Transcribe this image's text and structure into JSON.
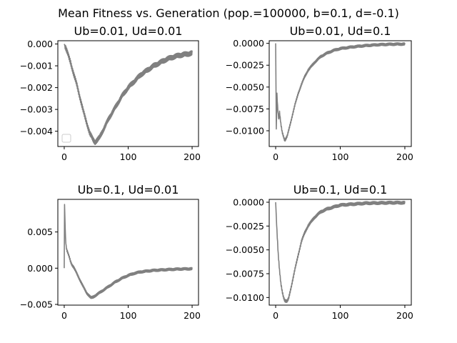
{
  "figure_title": "Mean Fitness vs. Generation (pop.=100000, b=0.1, d=-0.1)",
  "chart_data": [
    {
      "type": "line",
      "title": "Ub=0.01, Ud=0.01",
      "xlim": [
        -10,
        210
      ],
      "ylim": [
        -0.0047,
        0.00015
      ],
      "xticks": [
        0,
        100,
        200
      ],
      "xtick_labels": [
        "0",
        "100",
        "200"
      ],
      "yticks": [
        0.0,
        -0.001,
        -0.002,
        -0.003,
        -0.004
      ],
      "ytick_labels": [
        "0.000",
        "−0.001",
        "−0.002",
        "−0.003",
        "−0.004"
      ],
      "legend": "empty box, lower left",
      "series": [
        {
          "color": "#808080",
          "points": [
            [
              0,
              0
            ],
            [
              2,
              -0.00015
            ],
            [
              5,
              -0.0004
            ],
            [
              10,
              -0.00085
            ],
            [
              15,
              -0.0014
            ],
            [
              20,
              -0.0019
            ],
            [
              25,
              -0.0025
            ],
            [
              30,
              -0.0031
            ],
            [
              35,
              -0.0036
            ],
            [
              40,
              -0.0041
            ],
            [
              45,
              -0.00438
            ],
            [
              48,
              -0.0045
            ],
            [
              50,
              -0.00445
            ],
            [
              55,
              -0.0043
            ],
            [
              60,
              -0.004
            ],
            [
              65,
              -0.0037
            ],
            [
              70,
              -0.0034
            ],
            [
              80,
              -0.0029
            ],
            [
              90,
              -0.0024
            ],
            [
              100,
              -0.002
            ],
            [
              110,
              -0.0017
            ],
            [
              120,
              -0.0014
            ],
            [
              130,
              -0.0012
            ],
            [
              140,
              -0.001
            ],
            [
              150,
              -0.00085
            ],
            [
              160,
              -0.0007
            ],
            [
              170,
              -0.0006
            ],
            [
              180,
              -0.00052
            ],
            [
              190,
              -0.00047
            ],
            [
              200,
              -0.00042
            ]
          ],
          "band": 0.00012
        }
      ]
    },
    {
      "type": "line",
      "title": "Ub=0.01, Ud=0.1",
      "xlim": [
        -10,
        210
      ],
      "ylim": [
        -0.0118,
        0.0003
      ],
      "xticks": [
        0,
        100,
        200
      ],
      "xtick_labels": [
        "0",
        "100",
        "200"
      ],
      "yticks": [
        0.0,
        -0.0025,
        -0.005,
        -0.0075,
        -0.01
      ],
      "ytick_labels": [
        "0.0000",
        "−0.0025",
        "−0.0050",
        "−0.0075",
        "−0.0100"
      ],
      "series": [
        {
          "color": "#808080",
          "points": [
            [
              0,
              0
            ],
            [
              1,
              -0.0098
            ],
            [
              2,
              -0.0058
            ],
            [
              3,
              -0.0072
            ],
            [
              4,
              -0.0082
            ],
            [
              5,
              -0.0088
            ],
            [
              6,
              -0.0079
            ],
            [
              8,
              -0.0092
            ],
            [
              10,
              -0.0101
            ],
            [
              12,
              -0.0106
            ],
            [
              14,
              -0.0111
            ],
            [
              16,
              -0.0109
            ],
            [
              18,
              -0.0106
            ],
            [
              20,
              -0.01
            ],
            [
              25,
              -0.0085
            ],
            [
              30,
              -0.007
            ],
            [
              35,
              -0.0057
            ],
            [
              40,
              -0.0047
            ],
            [
              45,
              -0.0038
            ],
            [
              50,
              -0.0031
            ],
            [
              60,
              -0.0022
            ],
            [
              70,
              -0.0015
            ],
            [
              80,
              -0.0011
            ],
            [
              90,
              -0.0008
            ],
            [
              100,
              -0.0006
            ],
            [
              120,
              -0.0004
            ],
            [
              140,
              -0.00025
            ],
            [
              160,
              -0.00015
            ],
            [
              180,
              -0.0001
            ],
            [
              200,
              -8e-05
            ]
          ],
          "band": 0.00015
        }
      ]
    },
    {
      "type": "line",
      "title": "Ub=0.1, Ud=0.01",
      "xlim": [
        -10,
        210
      ],
      "ylim": [
        -0.0051,
        0.0095
      ],
      "xticks": [
        0,
        100,
        200
      ],
      "xtick_labels": [
        "0",
        "100",
        "200"
      ],
      "yticks": [
        0.005,
        0.0,
        -0.005
      ],
      "ytick_labels": [
        "0.005",
        "0.000",
        "−0.005"
      ],
      "series": [
        {
          "color": "#808080",
          "points": [
            [
              0,
              0
            ],
            [
              0.5,
              0.0088
            ],
            [
              1,
              0.0072
            ],
            [
              2,
              0.0042
            ],
            [
              3,
              0.003
            ],
            [
              4,
              0.0025
            ],
            [
              6,
              0.002
            ],
            [
              8,
              0.0015
            ],
            [
              10,
              0.0009
            ],
            [
              12,
              0.0005
            ],
            [
              15,
              0.0001
            ],
            [
              20,
              -0.0008
            ],
            [
              25,
              -0.0017
            ],
            [
              30,
              -0.0026
            ],
            [
              35,
              -0.0034
            ],
            [
              40,
              -0.0039
            ],
            [
              42,
              -0.0041
            ],
            [
              45,
              -0.004
            ],
            [
              50,
              -0.0037
            ],
            [
              60,
              -0.0031
            ],
            [
              70,
              -0.0025
            ],
            [
              80,
              -0.0019
            ],
            [
              90,
              -0.0014
            ],
            [
              100,
              -0.001
            ],
            [
              110,
              -0.0007
            ],
            [
              120,
              -0.0005
            ],
            [
              140,
              -0.0003
            ],
            [
              160,
              -0.0002
            ],
            [
              180,
              -0.00012
            ],
            [
              200,
              -8e-05
            ]
          ],
          "band": 0.00018
        }
      ]
    },
    {
      "type": "line",
      "title": "Ub=0.1, Ud=0.1",
      "xlim": [
        -10,
        210
      ],
      "ylim": [
        -0.0108,
        0.0003
      ],
      "xticks": [
        0,
        100,
        200
      ],
      "xtick_labels": [
        "0",
        "100",
        "200"
      ],
      "yticks": [
        0.0,
        -0.0025,
        -0.005,
        -0.0075,
        -0.01
      ],
      "ytick_labels": [
        "0.0000",
        "−0.0025",
        "−0.0050",
        "−0.0075",
        "−0.0100"
      ],
      "series": [
        {
          "color": "#808080",
          "points": [
            [
              0,
              0
            ],
            [
              2,
              -0.003
            ],
            [
              4,
              -0.0055
            ],
            [
              6,
              -0.0072
            ],
            [
              8,
              -0.0085
            ],
            [
              10,
              -0.0093
            ],
            [
              12,
              -0.0099
            ],
            [
              14,
              -0.0103
            ],
            [
              16,
              -0.0104
            ],
            [
              18,
              -0.0104
            ],
            [
              20,
              -0.0101
            ],
            [
              22,
              -0.0095
            ],
            [
              25,
              -0.0086
            ],
            [
              30,
              -0.007
            ],
            [
              35,
              -0.0055
            ],
            [
              40,
              -0.0041
            ],
            [
              45,
              -0.0032
            ],
            [
              50,
              -0.0025
            ],
            [
              60,
              -0.0016
            ],
            [
              70,
              -0.001
            ],
            [
              80,
              -0.0007
            ],
            [
              90,
              -0.0005
            ],
            [
              100,
              -0.0003
            ],
            [
              120,
              -0.0002
            ],
            [
              140,
              -0.0001
            ],
            [
              160,
              -8e-05
            ],
            [
              180,
              -5e-05
            ],
            [
              200,
              -5e-05
            ]
          ],
          "band": 0.00016
        }
      ]
    }
  ]
}
